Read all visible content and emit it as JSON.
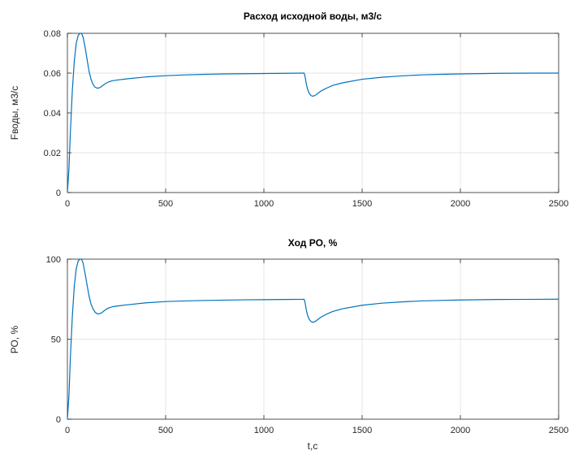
{
  "chart_data": [
    {
      "type": "line",
      "title": "Расход исходной воды, м3/с",
      "xlabel": "",
      "ylabel": "Fводы, м3/с",
      "xlim": [
        0,
        2500
      ],
      "ylim": [
        0,
        0.08
      ],
      "xticks": [
        0,
        500,
        1000,
        1500,
        2000,
        2500
      ],
      "yticks": [
        0,
        0.02,
        0.04,
        0.06,
        0.08
      ],
      "xtick_labels": [
        "0",
        "500",
        "1000",
        "1500",
        "2000",
        "2500"
      ],
      "ytick_labels": [
        "0",
        "0.02",
        "0.04",
        "0.06",
        "0.08"
      ],
      "grid": true,
      "color": "#0072BD",
      "series": [
        {
          "x": [
            0,
            8,
            15,
            25,
            35,
            45,
            55,
            65,
            72,
            80,
            90,
            100,
            110,
            120,
            130,
            140,
            150,
            160,
            170,
            180,
            195,
            210,
            230,
            260,
            300,
            400,
            500,
            600,
            700,
            800,
            900,
            1000,
            1100,
            1200,
            1205,
            1210,
            1215,
            1222,
            1230,
            1240,
            1250,
            1260,
            1275,
            1290,
            1320,
            1350,
            1400,
            1500,
            1600,
            1700,
            1800,
            1900,
            2000,
            2200,
            2400,
            2500
          ],
          "y": [
            0,
            0.012,
            0.03,
            0.051,
            0.066,
            0.075,
            0.079,
            0.08,
            0.08,
            0.078,
            0.073,
            0.067,
            0.061,
            0.057,
            0.0545,
            0.053,
            0.0525,
            0.0525,
            0.053,
            0.0538,
            0.0548,
            0.0556,
            0.0562,
            0.0566,
            0.0571,
            0.0581,
            0.0587,
            0.0591,
            0.0594,
            0.0596,
            0.0597,
            0.0598,
            0.0599,
            0.06,
            0.06,
            0.058,
            0.055,
            0.052,
            0.05,
            0.0487,
            0.0484,
            0.0488,
            0.0498,
            0.051,
            0.0525,
            0.0538,
            0.0551,
            0.0569,
            0.0579,
            0.0586,
            0.0591,
            0.0594,
            0.0596,
            0.0599,
            0.06,
            0.06
          ]
        }
      ]
    },
    {
      "type": "line",
      "title": "Ход РО, %",
      "xlabel": "t,c",
      "ylabel": "РО, %",
      "xlim": [
        0,
        2500
      ],
      "ylim": [
        0,
        100
      ],
      "xticks": [
        0,
        500,
        1000,
        1500,
        2000,
        2500
      ],
      "yticks": [
        0,
        50,
        100
      ],
      "xtick_labels": [
        "0",
        "500",
        "1000",
        "1500",
        "2000",
        "2500"
      ],
      "ytick_labels": [
        "0",
        "50",
        "100"
      ],
      "grid": true,
      "color": "#0072BD",
      "series": [
        {
          "x": [
            0,
            8,
            15,
            25,
            35,
            45,
            55,
            65,
            72,
            80,
            90,
            100,
            110,
            120,
            130,
            140,
            150,
            160,
            170,
            180,
            195,
            210,
            230,
            260,
            300,
            400,
            500,
            600,
            700,
            800,
            900,
            1000,
            1100,
            1200,
            1205,
            1210,
            1215,
            1222,
            1230,
            1240,
            1250,
            1260,
            1275,
            1290,
            1320,
            1350,
            1400,
            1500,
            1600,
            1700,
            1800,
            1900,
            2000,
            2200,
            2400,
            2500
          ],
          "y": [
            0,
            15,
            38,
            64,
            83,
            94,
            99,
            100,
            100,
            97.5,
            91,
            84,
            77,
            72,
            69,
            67,
            66,
            65.8,
            66.2,
            67,
            68.5,
            69.5,
            70.3,
            70.8,
            71.4,
            72.7,
            73.5,
            73.9,
            74.2,
            74.4,
            74.6,
            74.7,
            74.8,
            74.9,
            74.9,
            72.5,
            68.8,
            65,
            62.5,
            61,
            60.5,
            61,
            62.3,
            63.7,
            65.7,
            67.3,
            69,
            71.2,
            72.5,
            73.3,
            73.9,
            74.2,
            74.5,
            74.8,
            74.9,
            75
          ]
        }
      ]
    }
  ]
}
